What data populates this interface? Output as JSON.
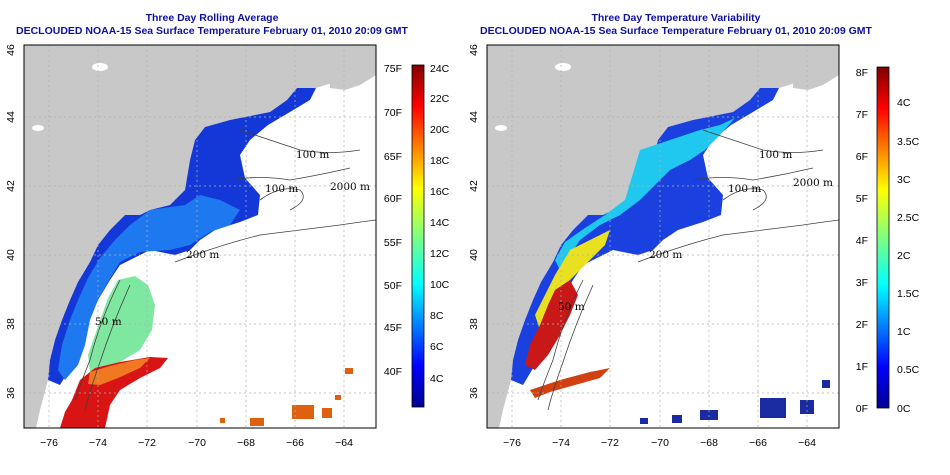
{
  "left_panel": {
    "title": "Three Day Rolling Average",
    "subtitle": "DECLOUDED NOAA-15 Sea Surface Temperature February 01, 2010 20:09 GMT",
    "colorbar_f": [
      "75F",
      "70F",
      "65F",
      "60F",
      "55F",
      "50F",
      "45F",
      "40F"
    ],
    "colorbar_c": [
      "24C",
      "22C",
      "20C",
      "18C",
      "16C",
      "14C",
      "12C",
      "10C",
      "8C",
      "6C",
      "4C"
    ]
  },
  "right_panel": {
    "title": "Three Day Temperature Variability",
    "subtitle": "DECLOUDED NOAA-15 Sea Surface Temperature February 01, 2010 20:09 GMT",
    "colorbar_f": [
      "8F",
      "7F",
      "6F",
      "5F",
      "4F",
      "3F",
      "2F",
      "1F",
      "0F"
    ],
    "colorbar_c": [
      "4C",
      "3.5C",
      "3C",
      "2.5C",
      "2C",
      "1.5C",
      "1C",
      "0.5C",
      "0C"
    ]
  },
  "lon_ticks": [
    "−76",
    "−74",
    "−72",
    "−70",
    "−68",
    "−66",
    "−64"
  ],
  "lat_ticks": [
    "46",
    "44",
    "42",
    "40",
    "38",
    "36"
  ],
  "contour_labels": [
    "100 m",
    "2000 m",
    "100 m",
    "200 m",
    "50 m"
  ],
  "colors": {
    "land": "#c8c8c8",
    "title": "#1010a0",
    "cold": "#1030d0",
    "warm": "#d01010"
  }
}
